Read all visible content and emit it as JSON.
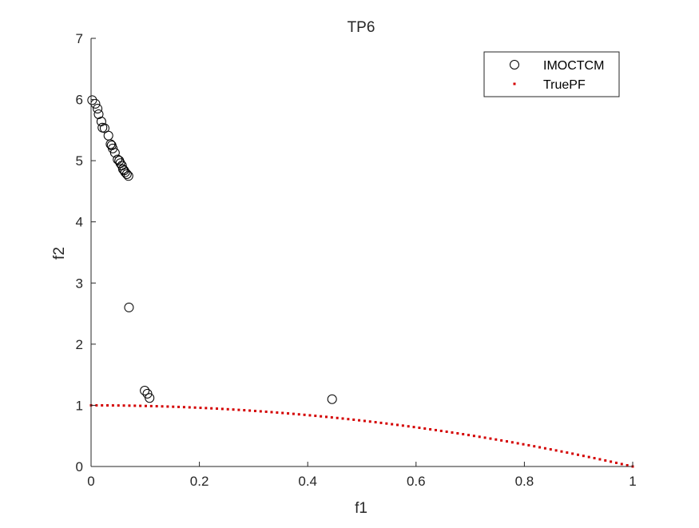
{
  "chart_data": {
    "type": "scatter",
    "title": "TP6",
    "xlabel": "f1",
    "ylabel": "f2",
    "xlim": [
      0,
      1
    ],
    "ylim": [
      0,
      7
    ],
    "xticks": [
      "0",
      "0.2",
      "0.4",
      "0.6",
      "0.8",
      "1"
    ],
    "yticks": [
      "0",
      "1",
      "2",
      "3",
      "4",
      "5",
      "6",
      "7"
    ],
    "grid": false,
    "legend_position": "top-right",
    "series": [
      {
        "name": "IMOCTCM",
        "marker": "open-circle",
        "color": "#000000",
        "points": [
          [
            0.002,
            5.99
          ],
          [
            0.008,
            5.93
          ],
          [
            0.012,
            5.85
          ],
          [
            0.014,
            5.76
          ],
          [
            0.019,
            5.64
          ],
          [
            0.021,
            5.54
          ],
          [
            0.025,
            5.53
          ],
          [
            0.032,
            5.41
          ],
          [
            0.036,
            5.27
          ],
          [
            0.038,
            5.25
          ],
          [
            0.04,
            5.2
          ],
          [
            0.044,
            5.13
          ],
          [
            0.049,
            5.02
          ],
          [
            0.052,
            5.0
          ],
          [
            0.054,
            4.96
          ],
          [
            0.057,
            4.92
          ],
          [
            0.059,
            4.86
          ],
          [
            0.061,
            4.84
          ],
          [
            0.063,
            4.81
          ],
          [
            0.066,
            4.78
          ],
          [
            0.069,
            4.75
          ],
          [
            0.07,
            2.6
          ],
          [
            0.099,
            1.24
          ],
          [
            0.104,
            1.19
          ],
          [
            0.108,
            1.12
          ],
          [
            0.445,
            1.1
          ]
        ]
      },
      {
        "name": "TruePF",
        "marker": "dot",
        "color": "#d40000",
        "function": "f2 = 1 - f1^2",
        "x_range": [
          0,
          1
        ],
        "n_points": 100
      }
    ]
  }
}
